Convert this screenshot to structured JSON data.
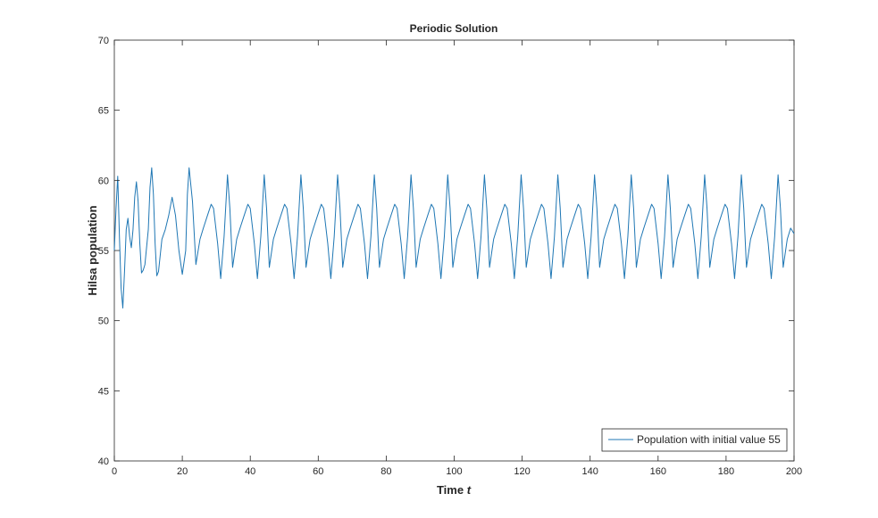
{
  "chart_data": {
    "type": "line",
    "title": "Periodic Solution",
    "xlabel": "Time",
    "xlabel_var": "t",
    "ylabel": "Hilsa population",
    "xlim": [
      0,
      200
    ],
    "ylim": [
      40,
      70
    ],
    "xticks": [
      0,
      20,
      40,
      60,
      80,
      100,
      120,
      140,
      160,
      180,
      200
    ],
    "yticks": [
      40,
      45,
      50,
      55,
      60,
      65,
      70
    ],
    "grid": false,
    "box": true,
    "legend_position": "bottom-right",
    "series": [
      {
        "name": "Population with initial value 55",
        "color": "#1f77b4",
        "x": [
          0,
          0.5,
          1,
          1.5,
          2,
          2.5,
          3,
          3.5,
          4,
          4.5,
          5,
          5.5,
          6,
          6.5,
          7,
          7.5,
          8,
          8.5,
          9,
          10,
          10.5,
          11,
          11.5,
          12,
          12.5,
          13,
          14,
          15,
          16,
          17,
          18,
          19,
          20,
          21,
          21.5,
          22,
          23,
          24
        ],
        "y": [
          55,
          58,
          60.3,
          56,
          52.3,
          50.9,
          53.5,
          56.5,
          57.3,
          56,
          55.2,
          56.5,
          58.8,
          59.9,
          58.5,
          55.5,
          53.4,
          53.6,
          54,
          56.5,
          59.5,
          60.9,
          59,
          55.5,
          53.2,
          53.5,
          55.8,
          56.5,
          57.5,
          58.8,
          57.5,
          55,
          53.3,
          55,
          59,
          60.9,
          58.5,
          54
        ]
      }
    ],
    "periodic_model": {
      "start_t": 24,
      "period": 10.8,
      "keypoints": [
        [
          0,
          53.8
        ],
        [
          1.2,
          55.8
        ],
        [
          2.2,
          56.6
        ],
        [
          3.4,
          57.5
        ],
        [
          4.5,
          58.3
        ],
        [
          5.2,
          58.0
        ],
        [
          6.4,
          55.5
        ],
        [
          7.3,
          53.0
        ],
        [
          8.3,
          56.0
        ],
        [
          9.3,
          60.4
        ],
        [
          10.0,
          58.0
        ],
        [
          10.8,
          53.8
        ]
      ],
      "end_t": 200,
      "end_value": 56.2
    }
  }
}
